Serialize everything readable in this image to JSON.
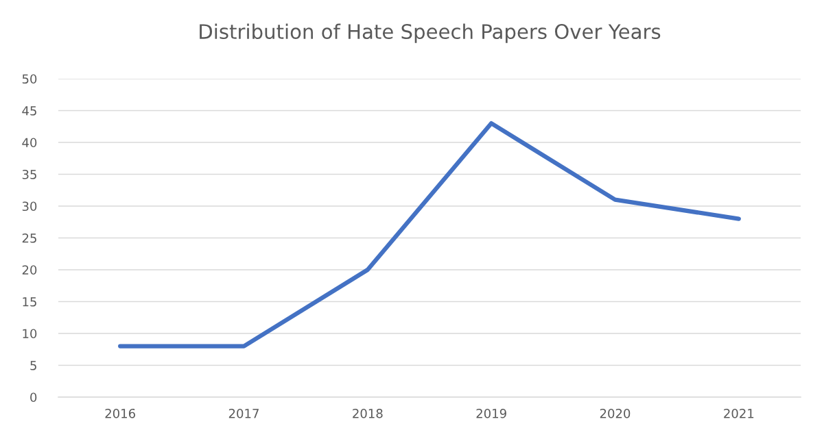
{
  "chart_data": {
    "type": "line",
    "title": "Distribution of Hate Speech Papers Over Years",
    "categories": [
      "2016",
      "2017",
      "2018",
      "2019",
      "2020",
      "2021"
    ],
    "series": [
      {
        "color": "#4472c4",
        "values": [
          8,
          8,
          20,
          43,
          31,
          28
        ]
      }
    ],
    "ylim": [
      0,
      50
    ],
    "yticks": [
      0,
      5,
      10,
      15,
      20,
      25,
      30,
      35,
      40,
      45,
      50
    ],
    "grid": "y",
    "marker": "none",
    "line_style": "solid",
    "legend": false
  }
}
